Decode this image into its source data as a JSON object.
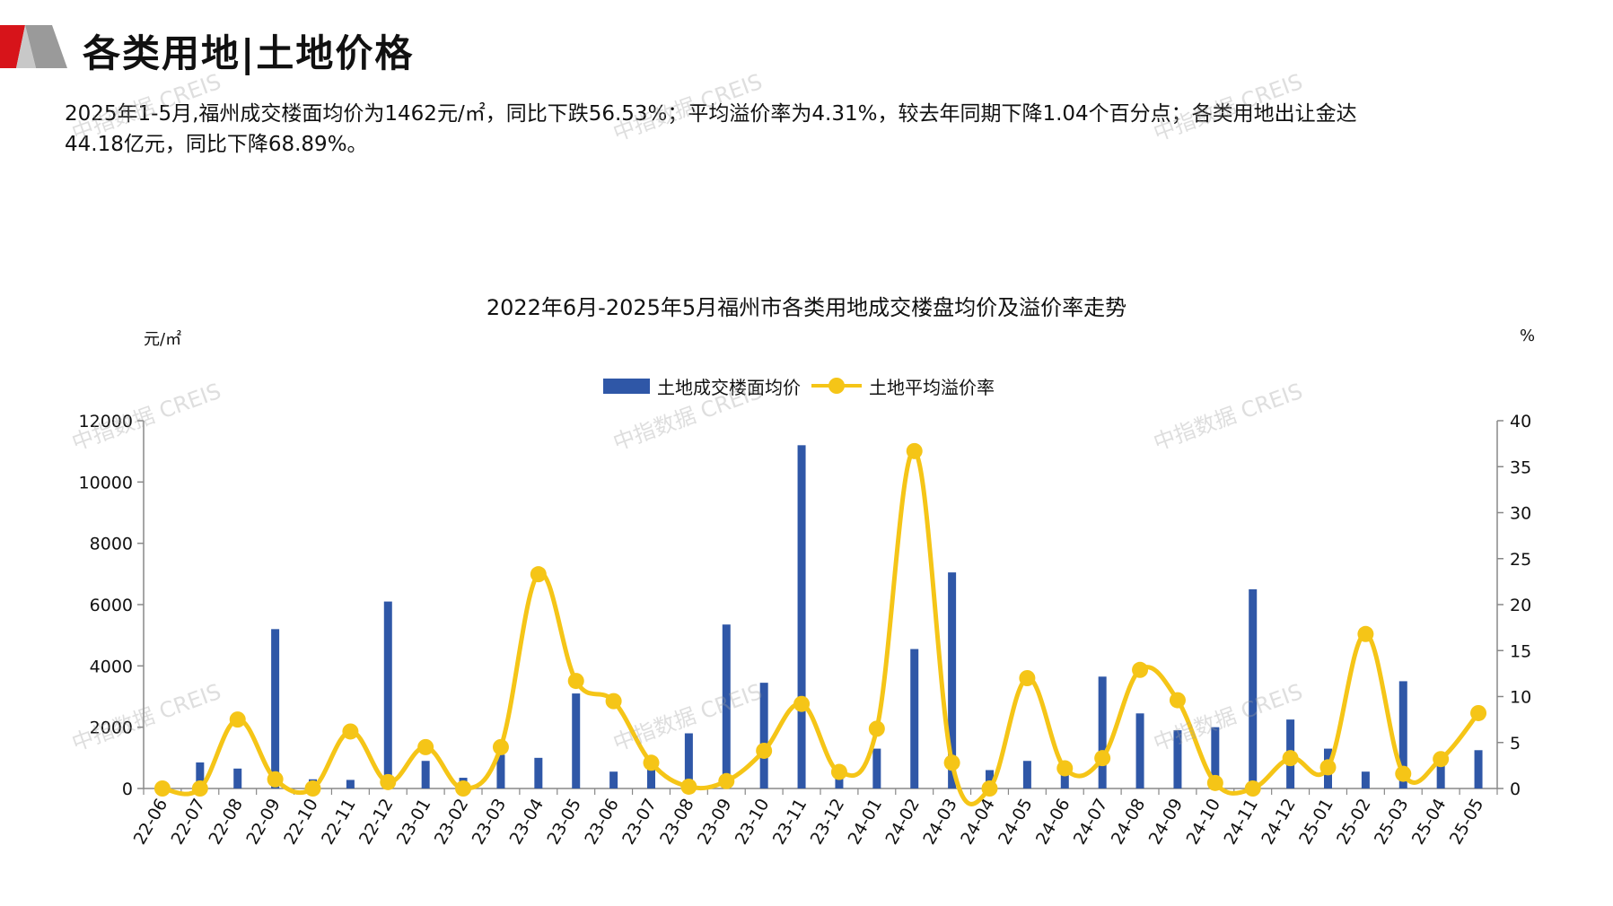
{
  "header": {
    "title": "各类用地|土地价格",
    "logo_colors": [
      "#d7141a",
      "#9a9a9a",
      "#c8c8c8"
    ]
  },
  "summary": {
    "line1": "2025年1-5月,福州成交楼面均价为1462元/㎡，同比下跌56.53%；平均溢价率为4.31%，较去年同期下降1.04个百分点；各类用地出让金达",
    "line2": "44.18亿元，同比下降68.89%。"
  },
  "watermark": {
    "text": "中指数据 CREIS"
  },
  "chart_data": {
    "type": "bar",
    "title": "2022年6月-2025年5月福州市各类用地成交楼盘均价及溢价率走势",
    "y_left_unit": "元/㎡",
    "y_right_unit": "%",
    "ylim_left": [
      0,
      12000
    ],
    "ylim_right": [
      0,
      40
    ],
    "y_left_ticks": [
      "0",
      "2000",
      "4000",
      "6000",
      "8000",
      "10000",
      "12000"
    ],
    "y_right_ticks": [
      "0",
      "5",
      "10",
      "15",
      "20",
      "25",
      "30",
      "35",
      "40"
    ],
    "grid": false,
    "legend_position": "top-center",
    "categories": [
      "22-06",
      "22-07",
      "22-08",
      "22-09",
      "22-10",
      "22-11",
      "22-12",
      "23-01",
      "23-02",
      "23-03",
      "23-04",
      "23-05",
      "23-06",
      "23-07",
      "23-08",
      "23-09",
      "23-10",
      "23-11",
      "23-12",
      "24-01",
      "24-02",
      "24-03",
      "24-04",
      "24-05",
      "24-06",
      "24-07",
      "24-08",
      "24-09",
      "24-10",
      "24-11",
      "24-12",
      "25-01",
      "25-02",
      "25-03",
      "25-04",
      "25-05"
    ],
    "series": [
      {
        "name": "土地成交楼面均价",
        "type": "bar",
        "axis": "left",
        "color": "#2f57a7",
        "values": [
          0,
          850,
          650,
          5200,
          300,
          280,
          6100,
          900,
          350,
          1100,
          1000,
          3100,
          550,
          800,
          1800,
          5350,
          3450,
          11200,
          500,
          1300,
          4550,
          7050,
          600,
          900,
          550,
          3650,
          2450,
          1900,
          2000,
          6500,
          2250,
          1300,
          550,
          3500,
          1000,
          1250
        ]
      },
      {
        "name": "土地平均溢价率",
        "type": "line",
        "axis": "right",
        "color": "#f5c517",
        "values": [
          0,
          0,
          7.5,
          1,
          0,
          6.2,
          0.7,
          4.5,
          0,
          4.5,
          23.3,
          11.7,
          9.5,
          2.8,
          0.2,
          0.8,
          4.1,
          9.2,
          1.8,
          6.5,
          36.7,
          2.8,
          0,
          12,
          2.2,
          3.3,
          12.9,
          9.6,
          0.6,
          0,
          3.3,
          2.3,
          16.8,
          1.6,
          3.2,
          8.2
        ]
      }
    ]
  }
}
